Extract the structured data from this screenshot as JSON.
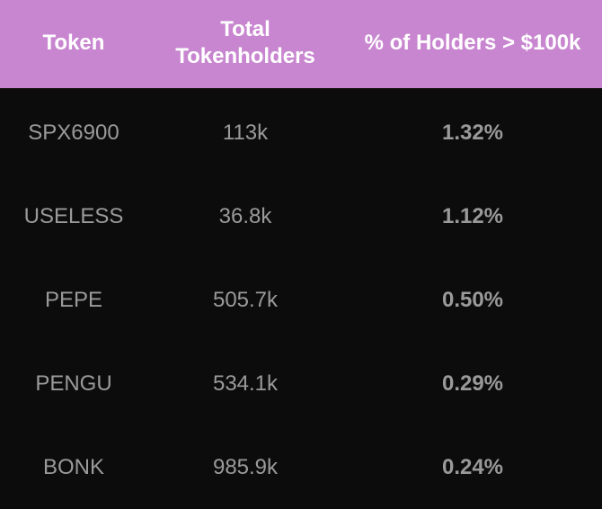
{
  "table": {
    "header": [
      "Token",
      "Total Tokenholders",
      "% of Holders > $100k"
    ],
    "rows": [
      [
        "SPX6900",
        "113k",
        "1.32%"
      ],
      [
        "USELESS",
        "36.8k",
        "1.12%"
      ],
      [
        "PEPE",
        "505.7k",
        "0.50%"
      ],
      [
        "PENGU",
        "534.1k",
        "0.29%"
      ],
      [
        "BONK",
        "985.9k",
        "0.24%"
      ]
    ]
  }
}
